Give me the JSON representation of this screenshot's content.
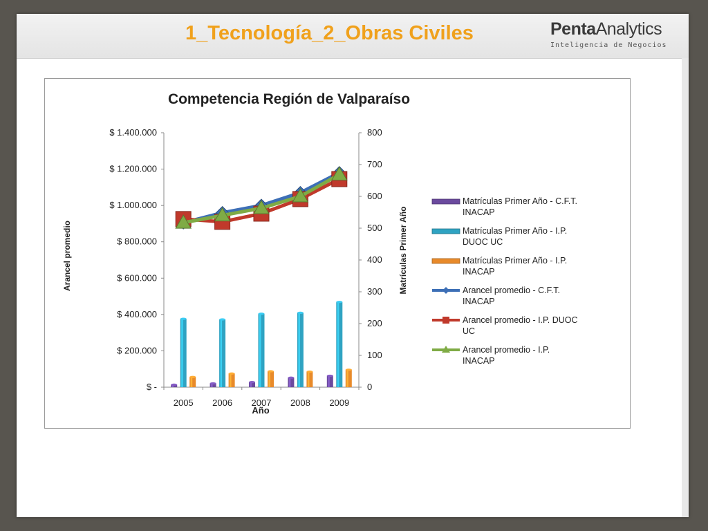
{
  "slide": {
    "title": "1_Tecnología_2_Obras Civiles",
    "logo_brand_bold": "Penta",
    "logo_brand_regular": "Analytics",
    "logo_tagline": "Inteligencia de Negocios"
  },
  "colors": {
    "title_orange": "#f0a11c",
    "purple": "#6b4a9e",
    "teal": "#2fa3c2",
    "orange": "#e88a2a",
    "blue": "#3d6fb6",
    "red": "#c0392b",
    "green": "#7fab45"
  },
  "chart_data": {
    "type": "bar+line",
    "title": "Competencia Región de Valparaíso",
    "xlabel": "Año",
    "ylabel_left": "Arancel promedio",
    "ylabel_right": "Matrículas Primer Año",
    "categories": [
      "2005",
      "2006",
      "2007",
      "2008",
      "2009"
    ],
    "y_left": {
      "range": [
        0,
        1400000
      ],
      "ticks": [
        0,
        200000,
        400000,
        600000,
        800000,
        1000000,
        1200000,
        1400000
      ],
      "tick_labels": [
        "$ -",
        "$ 200.000",
        "$ 400.000",
        "$ 600.000",
        "$ 800.000",
        "$ 1.000.000",
        "$ 1.200.000",
        "$ 1.400.000"
      ]
    },
    "y_right": {
      "range": [
        0,
        800
      ],
      "ticks": [
        0,
        100,
        200,
        300,
        400,
        500,
        600,
        700,
        800
      ],
      "tick_labels": [
        "0",
        "100",
        "200",
        "300",
        "400",
        "500",
        "600",
        "700",
        "800"
      ]
    },
    "bar_series": [
      {
        "name": "Matrículas Primer Año - C.F.T. INACAP",
        "axis": "right",
        "color": "#6b4a9e",
        "values": [
          8,
          12,
          16,
          30,
          36
        ]
      },
      {
        "name": "Matrículas Primer Año - I.P. DUOC UC",
        "axis": "right",
        "color": "#2fa3c2",
        "values": [
          215,
          213,
          231,
          234,
          268
        ]
      },
      {
        "name": "Matrículas Primer Año - I.P. INACAP",
        "axis": "right",
        "color": "#e88a2a",
        "values": [
          32,
          43,
          50,
          49,
          55
        ]
      }
    ],
    "line_series": [
      {
        "name": "Arancel promedio  - C.F.T. INACAP",
        "axis": "left",
        "color": "#3d6fb6",
        "marker": "diamond",
        "values": [
          905000,
          960000,
          1000000,
          1070000,
          1180000
        ]
      },
      {
        "name": "Arancel promedio  - I.P. DUOC UC",
        "axis": "left",
        "color": "#c0392b",
        "marker": "square",
        "values": [
          925000,
          910000,
          955000,
          1035000,
          1145000
        ]
      },
      {
        "name": "Arancel promedio  - I.P. INACAP",
        "axis": "left",
        "color": "#7fab45",
        "marker": "triangle",
        "values": [
          905000,
          945000,
          985000,
          1050000,
          1170000
        ]
      }
    ],
    "legend_entries": [
      [
        "Matrículas Primer Año - C.F.T.",
        "INACAP"
      ],
      [
        "Matrículas Primer Año - I.P.",
        "DUOC UC"
      ],
      [
        "Matrículas Primer Año - I.P.",
        "INACAP"
      ],
      [
        "Arancel promedio  - C.F.T.",
        "INACAP"
      ],
      [
        "Arancel promedio  - I.P. DUOC",
        "UC"
      ],
      [
        "Arancel promedio  - I.P.",
        "INACAP"
      ]
    ],
    "legend_position": "right",
    "grid": false
  }
}
